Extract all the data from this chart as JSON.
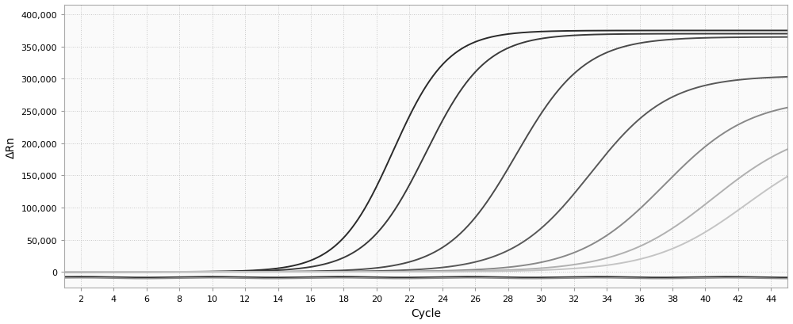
{
  "title": "",
  "xlabel": "Cycle",
  "ylabel": "ΔRn",
  "xlim": [
    1,
    45
  ],
  "ylim": [
    -25000,
    415000
  ],
  "xticks": [
    2,
    4,
    6,
    8,
    10,
    12,
    14,
    16,
    18,
    20,
    22,
    24,
    26,
    28,
    30,
    32,
    34,
    36,
    38,
    40,
    42,
    44
  ],
  "yticks": [
    0,
    50000,
    100000,
    150000,
    200000,
    250000,
    300000,
    350000,
    400000
  ],
  "ytick_labels": [
    "0",
    "50,000",
    "100,000",
    "150,000",
    "200,000",
    "250,000",
    "300,000",
    "350,000",
    "400,000"
  ],
  "background_color": "#ffffff",
  "grid_color": "#c8c8c8",
  "curves": [
    {
      "midpoint": 21.0,
      "L": 375000,
      "k": 0.6,
      "color": "#2a2a2a",
      "lw": 1.4
    },
    {
      "midpoint": 23.0,
      "L": 370000,
      "k": 0.55,
      "color": "#3a3a3a",
      "lw": 1.4
    },
    {
      "midpoint": 28.5,
      "L": 365000,
      "k": 0.48,
      "color": "#4a4a4a",
      "lw": 1.4
    },
    {
      "midpoint": 33.0,
      "L": 305000,
      "k": 0.42,
      "color": "#585858",
      "lw": 1.4
    },
    {
      "midpoint": 37.5,
      "L": 270000,
      "k": 0.38,
      "color": "#888888",
      "lw": 1.4
    },
    {
      "midpoint": 40.5,
      "L": 230000,
      "k": 0.35,
      "color": "#b0b0b0",
      "lw": 1.4
    },
    {
      "midpoint": 42.5,
      "L": 210000,
      "k": 0.35,
      "color": "#c4c4c4",
      "lw": 1.4
    }
  ],
  "flat_curves": [
    {
      "y_val": -8000,
      "color": "#2a2a2a",
      "lw": 1.2
    },
    {
      "y_val": -10000,
      "color": "#888888",
      "lw": 1.0
    }
  ]
}
